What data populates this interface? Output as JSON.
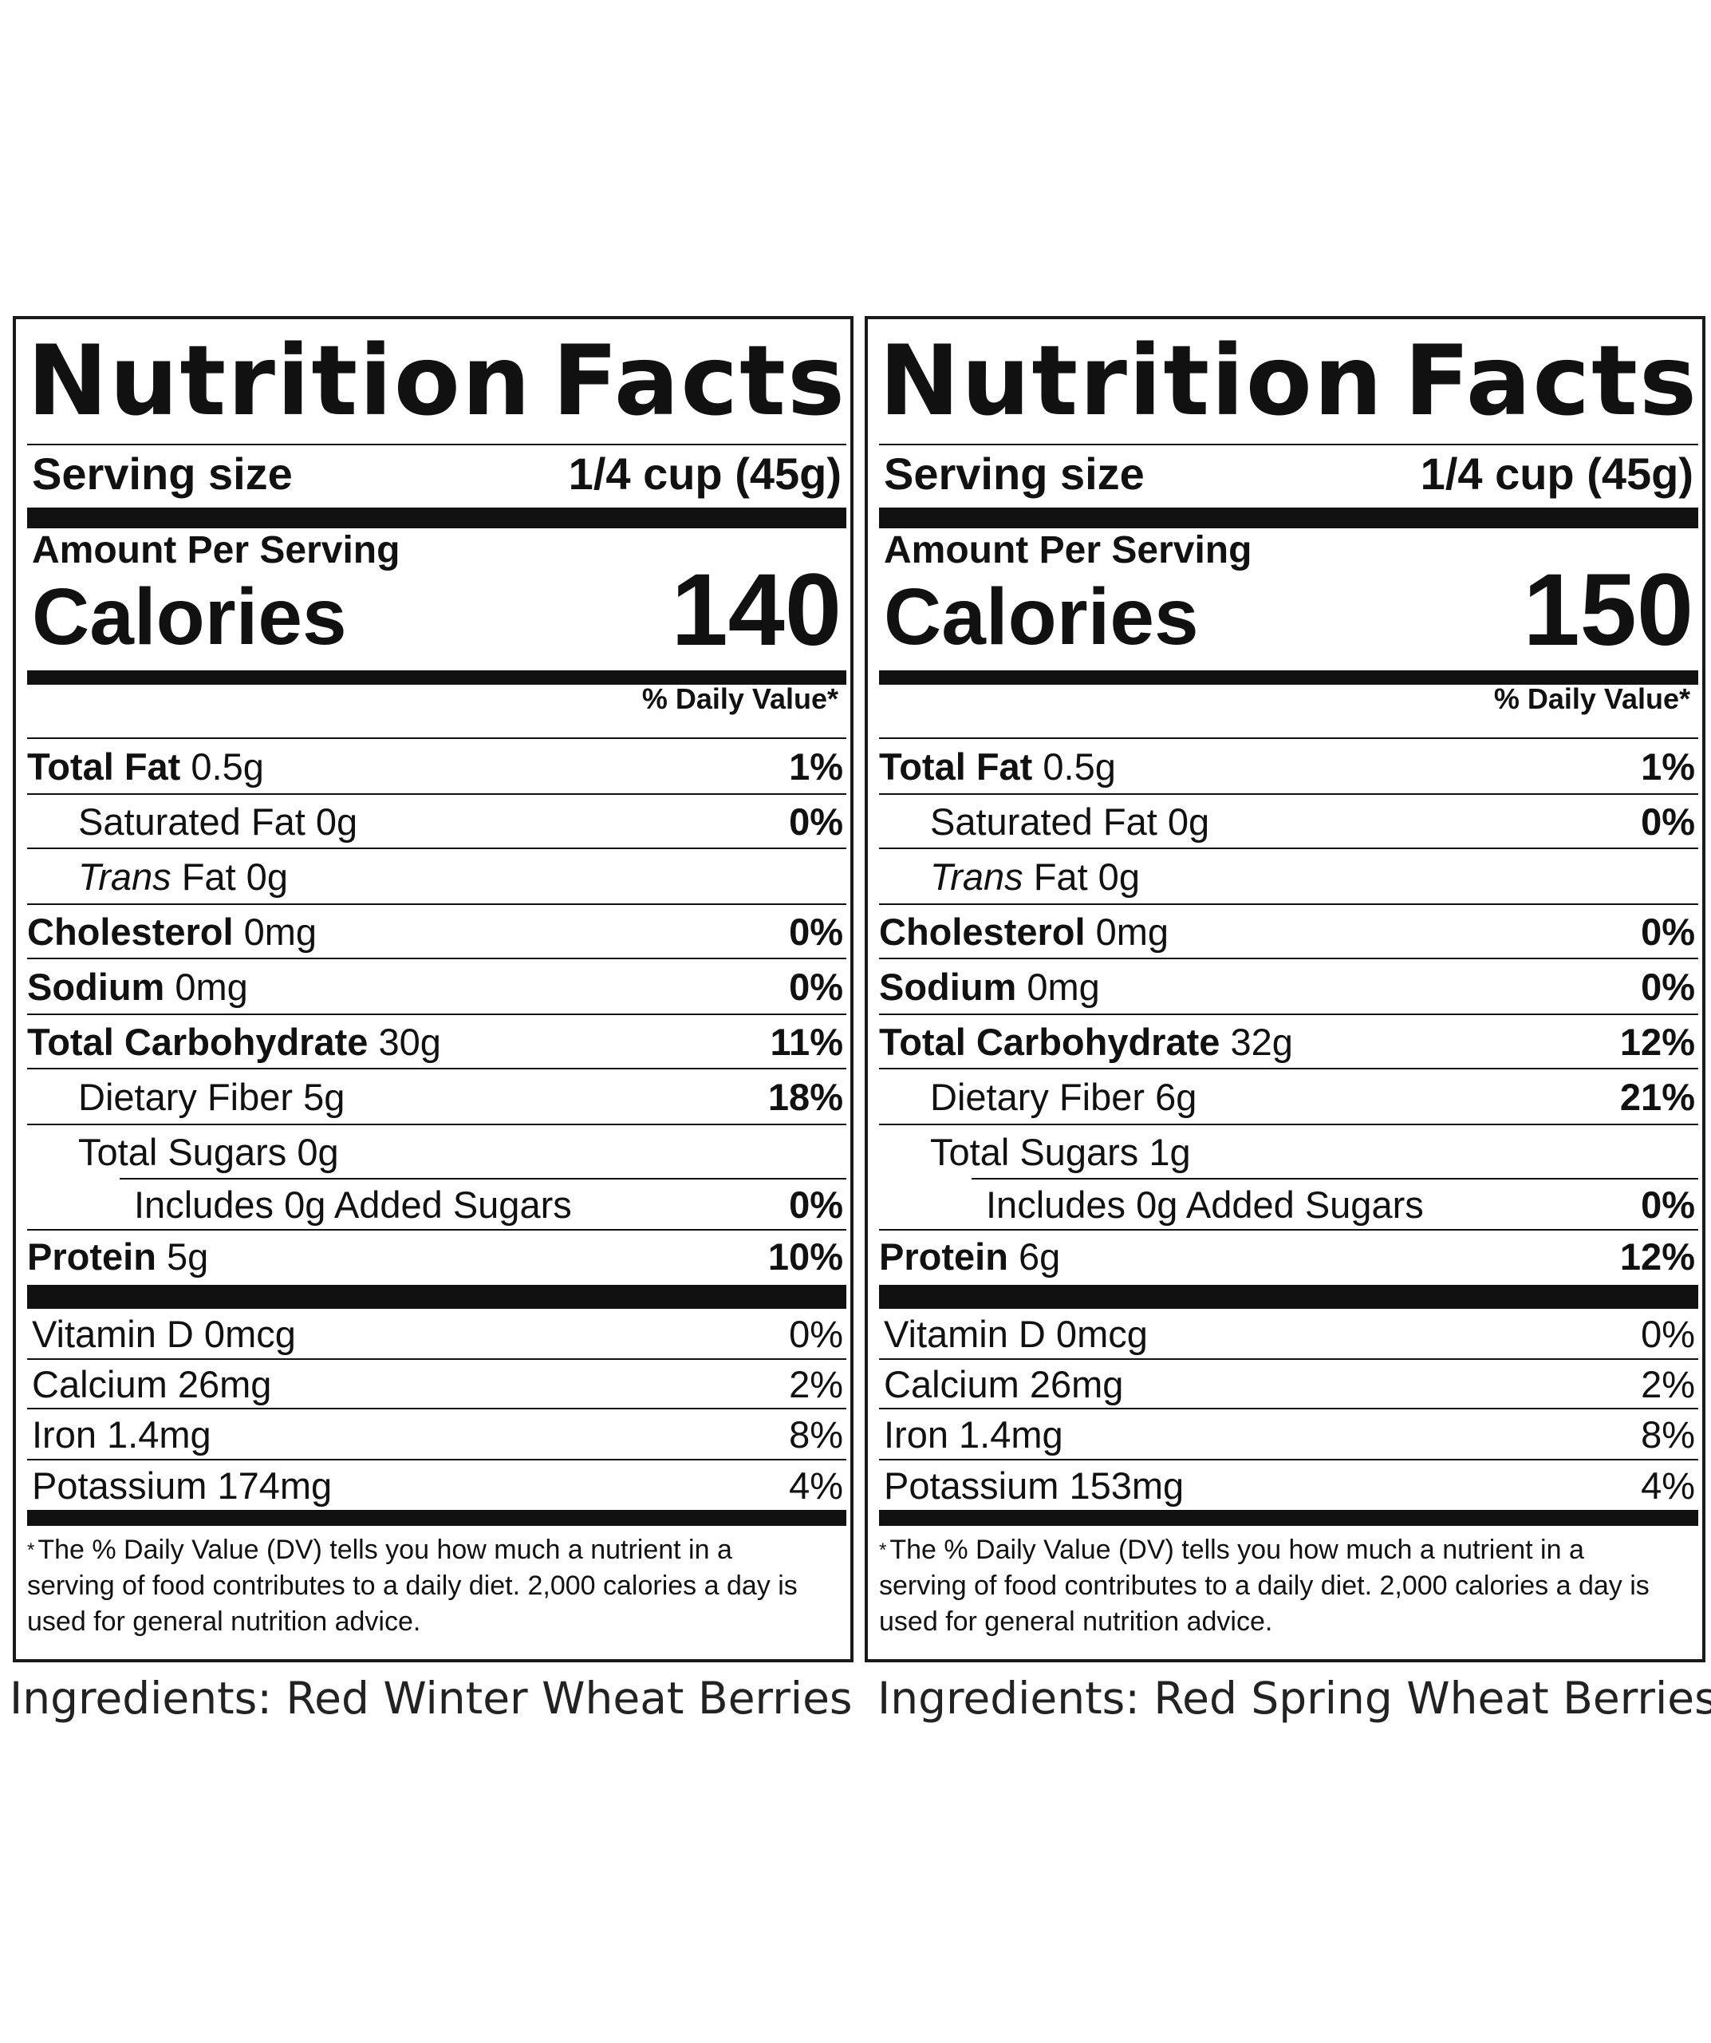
{
  "panels": [
    {
      "title_word1": "Nutrition",
      "title_word2": "Facts",
      "serving_label": "Serving size",
      "serving_value": "1/4 cup (45g)",
      "amount_per_serving": "Amount Per Serving",
      "calories_label": "Calories",
      "calories_value": "140",
      "dv_header": "% Daily Value*",
      "nutrients": [
        {
          "name": "Total Fat",
          "amount": "0.5g",
          "dv": "1%"
        },
        {
          "name": "Saturated Fat",
          "amount": "0g",
          "dv": "0%"
        },
        {
          "name": "Trans",
          "amount": "Fat 0g",
          "dv": ""
        },
        {
          "name": "Cholesterol",
          "amount": "0mg",
          "dv": "0%"
        },
        {
          "name": "Sodium",
          "amount": "0mg",
          "dv": "0%"
        },
        {
          "name": "Total Carbohydrate",
          "amount": "30g",
          "dv": "11%"
        },
        {
          "name": "Dietary Fiber",
          "amount": "5g",
          "dv": "18%"
        },
        {
          "name": "Total Sugars",
          "amount": "0g",
          "dv": ""
        },
        {
          "name": "Includes 0g Added Sugars",
          "amount": "",
          "dv": "0%"
        },
        {
          "name": "Protein",
          "amount": "5g",
          "dv": "10%"
        }
      ],
      "vitamins": [
        {
          "label": "Vitamin D 0mcg",
          "dv": "0%"
        },
        {
          "label": "Calcium 26mg",
          "dv": "2%"
        },
        {
          "label": "Iron 1.4mg",
          "dv": "8%"
        },
        {
          "label": "Potassium 174mg",
          "dv": "4%"
        }
      ],
      "footnote_star": "*",
      "footnote": "The % Daily Value (DV) tells you how much a nutrient in a serving of food contributes to a daily diet. 2,000 calories a day is used for general nutrition advice.",
      "ingredients": "Ingredients: Red Winter Wheat Berries"
    },
    {
      "title_word1": "Nutrition",
      "title_word2": "Facts",
      "serving_label": "Serving size",
      "serving_value": "1/4 cup (45g)",
      "amount_per_serving": "Amount Per Serving",
      "calories_label": "Calories",
      "calories_value": "150",
      "dv_header": "% Daily Value*",
      "nutrients": [
        {
          "name": "Total Fat",
          "amount": "0.5g",
          "dv": "1%"
        },
        {
          "name": "Saturated Fat",
          "amount": "0g",
          "dv": "0%"
        },
        {
          "name": "Trans",
          "amount": "Fat 0g",
          "dv": ""
        },
        {
          "name": "Cholesterol",
          "amount": "0mg",
          "dv": "0%"
        },
        {
          "name": "Sodium",
          "amount": "0mg",
          "dv": "0%"
        },
        {
          "name": "Total Carbohydrate",
          "amount": "32g",
          "dv": "12%"
        },
        {
          "name": "Dietary Fiber",
          "amount": "6g",
          "dv": "21%"
        },
        {
          "name": "Total Sugars",
          "amount": "1g",
          "dv": ""
        },
        {
          "name": "Includes 0g Added Sugars",
          "amount": "",
          "dv": "0%"
        },
        {
          "name": "Protein",
          "amount": "6g",
          "dv": "12%"
        }
      ],
      "vitamins": [
        {
          "label": "Vitamin D 0mcg",
          "dv": "0%"
        },
        {
          "label": "Calcium 26mg",
          "dv": "2%"
        },
        {
          "label": "Iron 1.4mg",
          "dv": "8%"
        },
        {
          "label": "Potassium 153mg",
          "dv": "4%"
        }
      ],
      "footnote_star": "*",
      "footnote": "The % Daily Value (DV) tells you how much a nutrient in a serving of food contributes to a daily diet. 2,000 calories a day is used for general nutrition advice.",
      "ingredients": "Ingredients: Red Spring Wheat Berries"
    }
  ]
}
